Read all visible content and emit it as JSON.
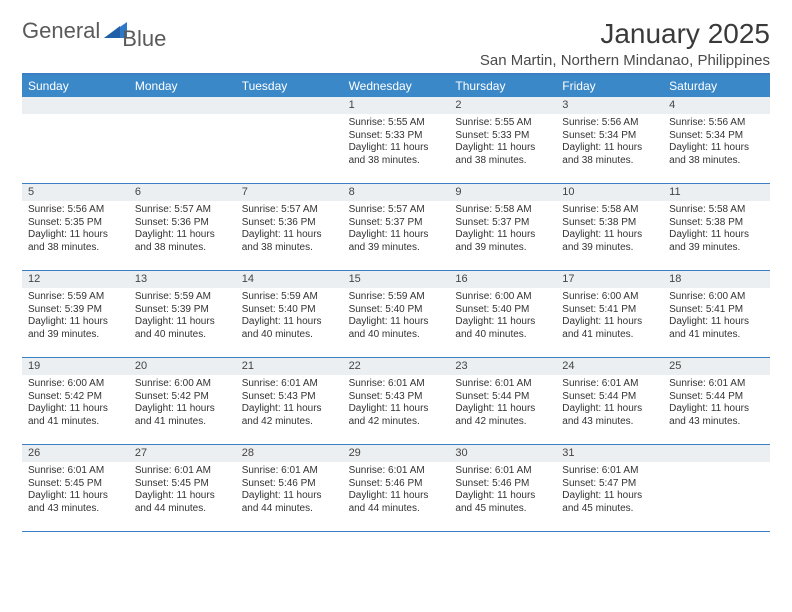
{
  "logo": {
    "text1": "General",
    "text2": "Blue"
  },
  "title": "January 2025",
  "location": "San Martin, Northern Mindanao, Philippines",
  "colors": {
    "header_bg": "#3b88c9",
    "header_text": "#ffffff",
    "rule": "#3b7fc4",
    "daynum_bg": "#eceff1",
    "text": "#333333",
    "logo_accent": "#2e79c7"
  },
  "day_names": [
    "Sunday",
    "Monday",
    "Tuesday",
    "Wednesday",
    "Thursday",
    "Friday",
    "Saturday"
  ],
  "weeks": [
    [
      {
        "n": "",
        "lines": []
      },
      {
        "n": "",
        "lines": []
      },
      {
        "n": "",
        "lines": []
      },
      {
        "n": "1",
        "lines": [
          "Sunrise: 5:55 AM",
          "Sunset: 5:33 PM",
          "Daylight: 11 hours and 38 minutes."
        ]
      },
      {
        "n": "2",
        "lines": [
          "Sunrise: 5:55 AM",
          "Sunset: 5:33 PM",
          "Daylight: 11 hours and 38 minutes."
        ]
      },
      {
        "n": "3",
        "lines": [
          "Sunrise: 5:56 AM",
          "Sunset: 5:34 PM",
          "Daylight: 11 hours and 38 minutes."
        ]
      },
      {
        "n": "4",
        "lines": [
          "Sunrise: 5:56 AM",
          "Sunset: 5:34 PM",
          "Daylight: 11 hours and 38 minutes."
        ]
      }
    ],
    [
      {
        "n": "5",
        "lines": [
          "Sunrise: 5:56 AM",
          "Sunset: 5:35 PM",
          "Daylight: 11 hours and 38 minutes."
        ]
      },
      {
        "n": "6",
        "lines": [
          "Sunrise: 5:57 AM",
          "Sunset: 5:36 PM",
          "Daylight: 11 hours and 38 minutes."
        ]
      },
      {
        "n": "7",
        "lines": [
          "Sunrise: 5:57 AM",
          "Sunset: 5:36 PM",
          "Daylight: 11 hours and 38 minutes."
        ]
      },
      {
        "n": "8",
        "lines": [
          "Sunrise: 5:57 AM",
          "Sunset: 5:37 PM",
          "Daylight: 11 hours and 39 minutes."
        ]
      },
      {
        "n": "9",
        "lines": [
          "Sunrise: 5:58 AM",
          "Sunset: 5:37 PM",
          "Daylight: 11 hours and 39 minutes."
        ]
      },
      {
        "n": "10",
        "lines": [
          "Sunrise: 5:58 AM",
          "Sunset: 5:38 PM",
          "Daylight: 11 hours and 39 minutes."
        ]
      },
      {
        "n": "11",
        "lines": [
          "Sunrise: 5:58 AM",
          "Sunset: 5:38 PM",
          "Daylight: 11 hours and 39 minutes."
        ]
      }
    ],
    [
      {
        "n": "12",
        "lines": [
          "Sunrise: 5:59 AM",
          "Sunset: 5:39 PM",
          "Daylight: 11 hours and 39 minutes."
        ]
      },
      {
        "n": "13",
        "lines": [
          "Sunrise: 5:59 AM",
          "Sunset: 5:39 PM",
          "Daylight: 11 hours and 40 minutes."
        ]
      },
      {
        "n": "14",
        "lines": [
          "Sunrise: 5:59 AM",
          "Sunset: 5:40 PM",
          "Daylight: 11 hours and 40 minutes."
        ]
      },
      {
        "n": "15",
        "lines": [
          "Sunrise: 5:59 AM",
          "Sunset: 5:40 PM",
          "Daylight: 11 hours and 40 minutes."
        ]
      },
      {
        "n": "16",
        "lines": [
          "Sunrise: 6:00 AM",
          "Sunset: 5:40 PM",
          "Daylight: 11 hours and 40 minutes."
        ]
      },
      {
        "n": "17",
        "lines": [
          "Sunrise: 6:00 AM",
          "Sunset: 5:41 PM",
          "Daylight: 11 hours and 41 minutes."
        ]
      },
      {
        "n": "18",
        "lines": [
          "Sunrise: 6:00 AM",
          "Sunset: 5:41 PM",
          "Daylight: 11 hours and 41 minutes."
        ]
      }
    ],
    [
      {
        "n": "19",
        "lines": [
          "Sunrise: 6:00 AM",
          "Sunset: 5:42 PM",
          "Daylight: 11 hours and 41 minutes."
        ]
      },
      {
        "n": "20",
        "lines": [
          "Sunrise: 6:00 AM",
          "Sunset: 5:42 PM",
          "Daylight: 11 hours and 41 minutes."
        ]
      },
      {
        "n": "21",
        "lines": [
          "Sunrise: 6:01 AM",
          "Sunset: 5:43 PM",
          "Daylight: 11 hours and 42 minutes."
        ]
      },
      {
        "n": "22",
        "lines": [
          "Sunrise: 6:01 AM",
          "Sunset: 5:43 PM",
          "Daylight: 11 hours and 42 minutes."
        ]
      },
      {
        "n": "23",
        "lines": [
          "Sunrise: 6:01 AM",
          "Sunset: 5:44 PM",
          "Daylight: 11 hours and 42 minutes."
        ]
      },
      {
        "n": "24",
        "lines": [
          "Sunrise: 6:01 AM",
          "Sunset: 5:44 PM",
          "Daylight: 11 hours and 43 minutes."
        ]
      },
      {
        "n": "25",
        "lines": [
          "Sunrise: 6:01 AM",
          "Sunset: 5:44 PM",
          "Daylight: 11 hours and 43 minutes."
        ]
      }
    ],
    [
      {
        "n": "26",
        "lines": [
          "Sunrise: 6:01 AM",
          "Sunset: 5:45 PM",
          "Daylight: 11 hours and 43 minutes."
        ]
      },
      {
        "n": "27",
        "lines": [
          "Sunrise: 6:01 AM",
          "Sunset: 5:45 PM",
          "Daylight: 11 hours and 44 minutes."
        ]
      },
      {
        "n": "28",
        "lines": [
          "Sunrise: 6:01 AM",
          "Sunset: 5:46 PM",
          "Daylight: 11 hours and 44 minutes."
        ]
      },
      {
        "n": "29",
        "lines": [
          "Sunrise: 6:01 AM",
          "Sunset: 5:46 PM",
          "Daylight: 11 hours and 44 minutes."
        ]
      },
      {
        "n": "30",
        "lines": [
          "Sunrise: 6:01 AM",
          "Sunset: 5:46 PM",
          "Daylight: 11 hours and 45 minutes."
        ]
      },
      {
        "n": "31",
        "lines": [
          "Sunrise: 6:01 AM",
          "Sunset: 5:47 PM",
          "Daylight: 11 hours and 45 minutes."
        ]
      },
      {
        "n": "",
        "lines": []
      }
    ]
  ]
}
